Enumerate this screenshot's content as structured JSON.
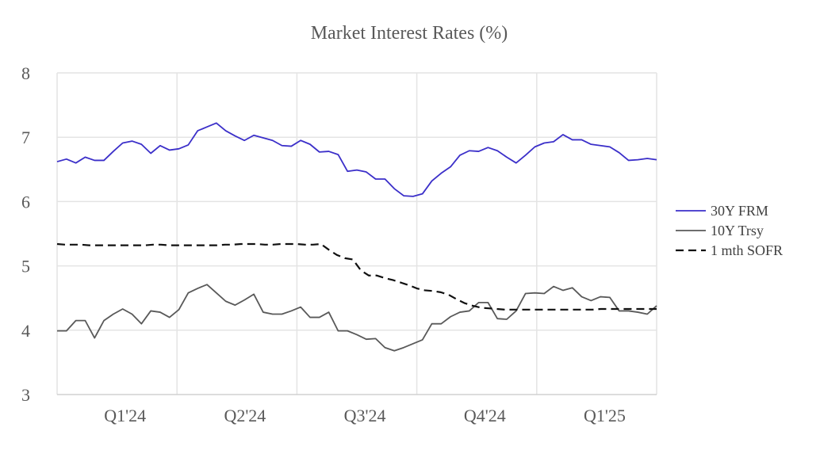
{
  "chart_data": {
    "type": "line",
    "title": "Market Interest Rates (%)",
    "xlabel": "",
    "ylabel": "",
    "ylim": [
      3,
      8
    ],
    "yticks": [
      3,
      4,
      5,
      6,
      7,
      8
    ],
    "x_points": 76,
    "quarter_labels": [
      {
        "label": "Q1'24",
        "at": 8.5
      },
      {
        "label": "Q2'24",
        "at": 23.5
      },
      {
        "label": "Q3'24",
        "at": 38.5
      },
      {
        "label": "Q4'24",
        "at": 53.5
      },
      {
        "label": "Q1'25",
        "at": 68.5
      }
    ],
    "vertical_gridlines_at": [
      0,
      15,
      30,
      45,
      60,
      75
    ],
    "grid": true,
    "legend_position": "right",
    "series": [
      {
        "name": "30Y FRM",
        "color": "#3b2fc9",
        "dash": "solid",
        "values": [
          6.62,
          6.66,
          6.6,
          6.69,
          6.64,
          6.64,
          6.78,
          6.91,
          6.94,
          6.89,
          6.75,
          6.87,
          6.8,
          6.82,
          6.88,
          7.1,
          7.16,
          7.22,
          7.1,
          7.02,
          6.95,
          7.03,
          6.99,
          6.95,
          6.87,
          6.86,
          6.95,
          6.89,
          6.77,
          6.78,
          6.73,
          6.47,
          6.49,
          6.46,
          6.35,
          6.35,
          6.2,
          6.09,
          6.08,
          6.12,
          6.32,
          6.44,
          6.54,
          6.72,
          6.79,
          6.78,
          6.84,
          6.79,
          6.69,
          6.6,
          6.72,
          6.85,
          6.91,
          6.93,
          7.04,
          6.96,
          6.96,
          6.89,
          6.87,
          6.85,
          6.76,
          6.64,
          6.65,
          6.67,
          6.65
        ]
      },
      {
        "name": "10Y Trsy",
        "color": "#595959",
        "dash": "solid",
        "values": [
          3.99,
          3.99,
          4.15,
          4.15,
          3.88,
          4.15,
          4.25,
          4.33,
          4.25,
          4.1,
          4.3,
          4.28,
          4.2,
          4.32,
          4.58,
          4.65,
          4.71,
          4.58,
          4.45,
          4.39,
          4.47,
          4.56,
          4.28,
          4.25,
          4.25,
          4.3,
          4.36,
          4.2,
          4.2,
          4.28,
          3.99,
          3.99,
          3.93,
          3.86,
          3.87,
          3.73,
          3.68,
          3.73,
          3.79,
          3.85,
          4.1,
          4.1,
          4.21,
          4.28,
          4.3,
          4.43,
          4.43,
          4.18,
          4.17,
          4.3,
          4.57,
          4.58,
          4.57,
          4.68,
          4.62,
          4.66,
          4.52,
          4.46,
          4.52,
          4.51,
          4.3,
          4.3,
          4.28,
          4.25,
          4.38
        ]
      },
      {
        "name": "1 mth SOFR",
        "color": "#111111",
        "dash": "dashed",
        "values": [
          5.34,
          5.33,
          5.33,
          5.33,
          5.32,
          5.32,
          5.32,
          5.32,
          5.32,
          5.32,
          5.32,
          5.32,
          5.33,
          5.33,
          5.32,
          5.32,
          5.32,
          5.32,
          5.32,
          5.32,
          5.32,
          5.33,
          5.33,
          5.34,
          5.34,
          5.34,
          5.33,
          5.33,
          5.34,
          5.34,
          5.34,
          5.33,
          5.33,
          5.34,
          5.25,
          5.17,
          5.12,
          5.1,
          4.93,
          4.85,
          4.85,
          4.81,
          4.78,
          4.74,
          4.7,
          4.65,
          4.62,
          4.61,
          4.59,
          4.55,
          4.48,
          4.42,
          4.38,
          4.35,
          4.34,
          4.33,
          4.32,
          4.32,
          4.32,
          4.32,
          4.32,
          4.32,
          4.32,
          4.32,
          4.32,
          4.32,
          4.32,
          4.32,
          4.33,
          4.33,
          4.33,
          4.33,
          4.33,
          4.33,
          4.33,
          4.33
        ]
      }
    ]
  }
}
